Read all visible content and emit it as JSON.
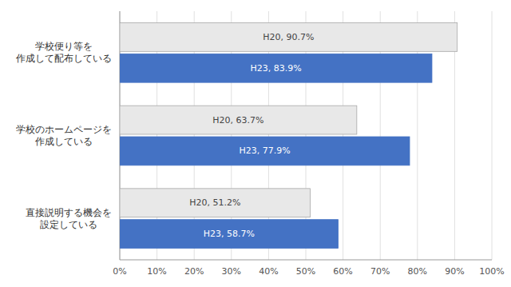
{
  "chart_data": {
    "type": "bar",
    "orientation": "horizontal",
    "categories": [
      "学校便り等を\n作成して配布している",
      "学校のホームページを\n作成している",
      "直接説明する機会を\n設定している"
    ],
    "series": [
      {
        "color": "#e8e8e8",
        "values": [
          90.7,
          63.7,
          51.2
        ],
        "value_labels": [
          "H20, 90.7%",
          "H20, 63.7%",
          "H20, 51.2%"
        ]
      },
      {
        "color": "#4472c4",
        "values": [
          83.9,
          77.9,
          58.7
        ],
        "value_labels": [
          "H23, 83.9%",
          "H23, 77.9%",
          "H23, 58.7%"
        ]
      }
    ],
    "xlim": [
      0,
      100
    ],
    "xticks": [
      {
        "value": 0,
        "label": "0%"
      },
      {
        "value": 10,
        "label": "10%"
      },
      {
        "value": 20,
        "label": "20%"
      },
      {
        "value": 30,
        "label": "30%"
      },
      {
        "value": 40,
        "label": "40%"
      },
      {
        "value": 50,
        "label": "50%"
      },
      {
        "value": 60,
        "label": "60%"
      },
      {
        "value": 70,
        "label": "70%"
      },
      {
        "value": 80,
        "label": "80%"
      },
      {
        "value": 90,
        "label": "90%"
      },
      {
        "value": 100,
        "label": "100%"
      }
    ],
    "grid": true,
    "data_labels": true
  }
}
